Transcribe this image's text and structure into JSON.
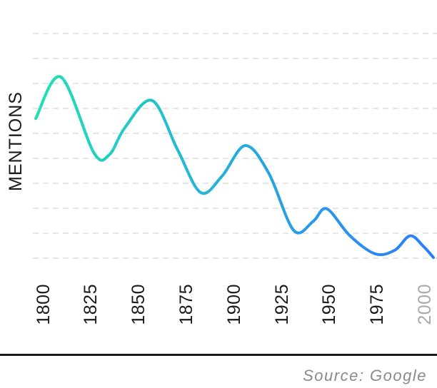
{
  "chart_data": {
    "type": "line",
    "title": "",
    "xlabel": "",
    "ylabel": "MENTIONS",
    "x_ticks": [
      1800,
      1825,
      1850,
      1875,
      1900,
      1925,
      1950,
      1975,
      2000
    ],
    "faded_ticks": [
      2000
    ],
    "xlim": [
      1800,
      2005
    ],
    "ylim": [
      0,
      100
    ],
    "grid": true,
    "grid_style": "dashed-horizontal",
    "series": [
      {
        "points": [
          [
            1800,
            77
          ],
          [
            1813,
            100
          ],
          [
            1830,
            58
          ],
          [
            1838,
            57
          ],
          [
            1846,
            72
          ],
          [
            1860,
            87
          ],
          [
            1873,
            60
          ],
          [
            1885,
            36
          ],
          [
            1896,
            45
          ],
          [
            1908,
            62
          ],
          [
            1920,
            47
          ],
          [
            1933,
            15
          ],
          [
            1943,
            20
          ],
          [
            1950,
            27
          ],
          [
            1962,
            12
          ],
          [
            1975,
            2
          ],
          [
            1985,
            4
          ],
          [
            1993,
            12
          ],
          [
            2000,
            6
          ],
          [
            2005,
            0
          ]
        ],
        "color_start": "#1ee0b4",
        "color_end": "#2b7bff"
      }
    ],
    "source": "Source: Google"
  }
}
